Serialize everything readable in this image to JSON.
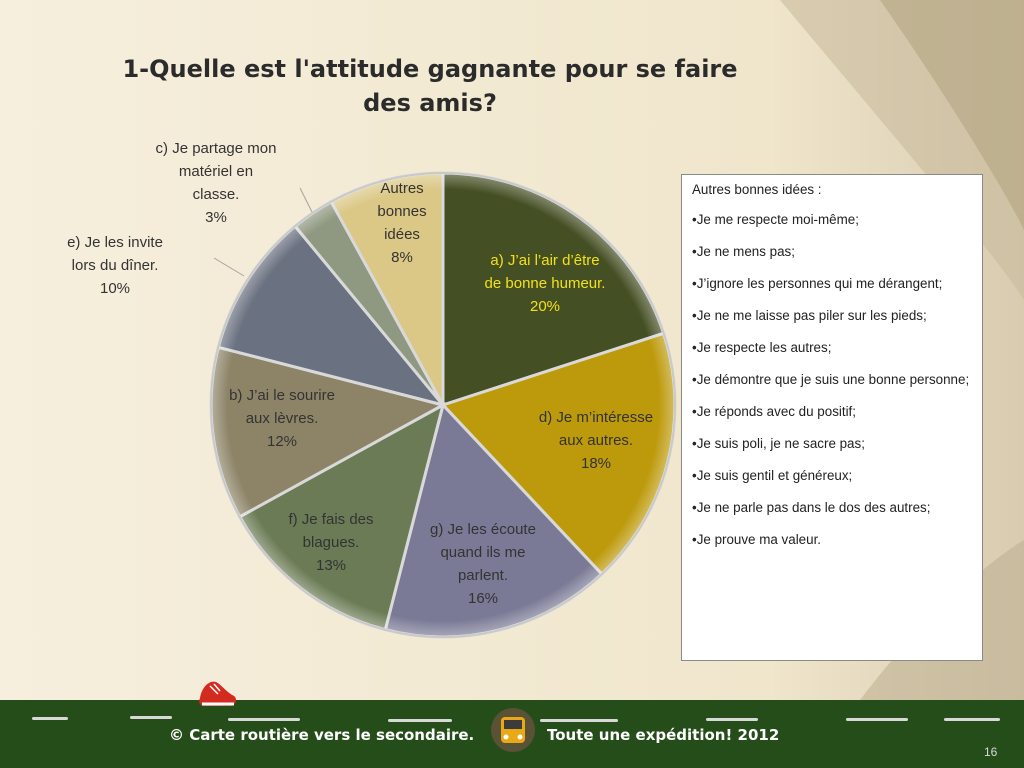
{
  "chart_data": {
    "type": "pie",
    "title": "1-Quelle est l'attitude gagnante pour se faire des amis?",
    "slices": [
      {
        "label": "a) J’ai l’air d’être de bonne humeur.",
        "value": 20,
        "pct_label": "20%",
        "color": "#454f24",
        "text_color": "#f2e11a"
      },
      {
        "label": "d) Je m’intéresse aux autres.",
        "value": 18,
        "pct_label": "18%",
        "color": "#bd9a0c",
        "text_color": "#333333"
      },
      {
        "label": "g) Je les écoute quand ils me parlent.",
        "value": 16,
        "pct_label": "16%",
        "color": "#7a7a96",
        "text_color": "#333333"
      },
      {
        "label": "f) Je fais des blagues.",
        "value": 13,
        "pct_label": "13%",
        "color": "#6b7b55",
        "text_color": "#333333"
      },
      {
        "label": "b) J’ai le sourire aux lèvres.",
        "value": 12,
        "pct_label": "12%",
        "color": "#8d8468",
        "text_color": "#333333"
      },
      {
        "label": "e) Je les invite lors du dîner.",
        "value": 10,
        "pct_label": "10%",
        "color": "#6a7180",
        "text_color": "#333333"
      },
      {
        "label": "c) Je partage mon matériel en classe.",
        "value": 3,
        "pct_label": "3%",
        "color": "#8f9880",
        "text_color": "#333333"
      },
      {
        "label": "Autres bonnes idées",
        "value": 8,
        "pct_label": "8%",
        "color": "#dbc886",
        "text_color": "#333333"
      }
    ]
  },
  "ideas": {
    "heading": "Autres bonnes idées :",
    "items": [
      "Je me respecte moi-même;",
      "Je ne mens pas;",
      "J’ignore les personnes qui me dérangent;",
      "Je ne me laisse pas piler sur les pieds;",
      "Je respecte les autres;",
      "Je démontre que je suis une bonne personne;",
      "Je réponds avec du positif;",
      "Je suis poli, je ne sacre pas;",
      "Je suis gentil et généreux;",
      "Je ne parle pas dans le dos des autres;",
      "Je prouve ma valeur."
    ]
  },
  "footer": {
    "left_text": "© Carte routière vers le secondaire.",
    "right_text": "Toute une expédition! 2012",
    "page_number": "16"
  }
}
